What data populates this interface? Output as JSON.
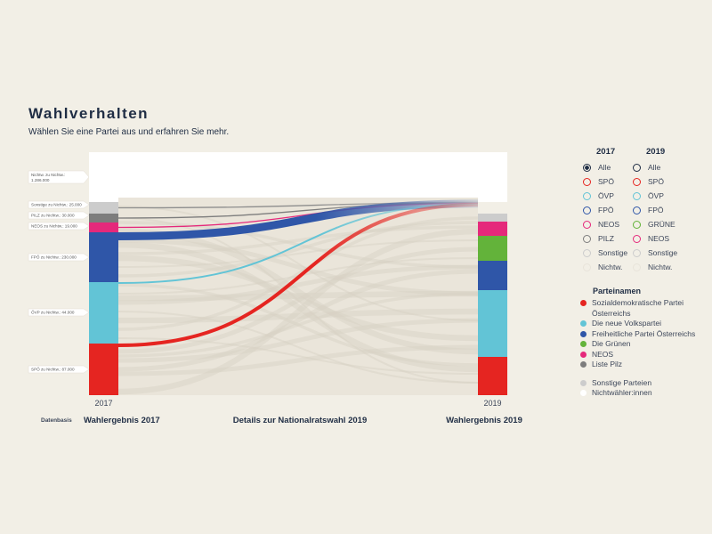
{
  "header": {
    "title": "Wahlverhalten",
    "subtitle": "Wählen Sie eine Partei aus und erfahren Sie mehr."
  },
  "chart_data": {
    "type": "sankey",
    "year_left": "2017",
    "year_right": "2019",
    "left_nodes": [
      {
        "id": "nichtw",
        "color": "#ffffff",
        "label": "Nichtw. zu Nichtw.: 1.286.000",
        "value": 1286000
      },
      {
        "id": "sonstige",
        "color": "#cccccc",
        "label": "Sonstige zu Nichtw.: 25.000",
        "value": 25000
      },
      {
        "id": "pilz",
        "color": "#7d7d7d",
        "label": "PILZ zu Nichtw.: 30.000",
        "value": 30000
      },
      {
        "id": "neos",
        "color": "#e5297b",
        "label": "NEOS zu Nichtw.: 19.000",
        "value": 19000
      },
      {
        "id": "fpo",
        "color": "#2f56a8",
        "label": "FPÖ zu Nichtw.: 230.000",
        "value": 230000
      },
      {
        "id": "ovp",
        "color": "#62c4d6",
        "label": "ÖVP zu Nichtw.: 44.000",
        "value": 44000
      },
      {
        "id": "spo",
        "color": "#e52521",
        "label": "SPÖ zu Nichtw.: 87.000",
        "value": 87000
      }
    ],
    "right_nodes": [
      {
        "id": "sonstige",
        "color": "#cccccc"
      },
      {
        "id": "neos",
        "color": "#e5297b"
      },
      {
        "id": "grune",
        "color": "#63b33a"
      },
      {
        "id": "fpo",
        "color": "#2f56a8"
      },
      {
        "id": "ovp",
        "color": "#62c4d6"
      },
      {
        "id": "spo",
        "color": "#e52521"
      }
    ],
    "highlighted_flows": [
      {
        "from": "sonstige",
        "to": "nichtw",
        "value": 25000,
        "color": "#8d8d8d"
      },
      {
        "from": "pilz",
        "to": "nichtw",
        "value": 30000,
        "color": "#7d7d7d"
      },
      {
        "from": "neos",
        "to": "nichtw",
        "value": 19000,
        "color": "#e5297b"
      },
      {
        "from": "fpo",
        "to": "nichtw",
        "value": 230000,
        "color": "#2f56a8"
      },
      {
        "from": "ovp",
        "to": "nichtw",
        "value": 44000,
        "color": "#62c4d6"
      },
      {
        "from": "spo",
        "to": "nichtw",
        "value": 87000,
        "color": "#e52521"
      }
    ],
    "bottom_labels": {
      "source": "Datenbasis",
      "left": "Wahlergebnis 2017",
      "center": "Details zur Nationalratswahl 2019",
      "right": "Wahlergebnis 2019"
    }
  },
  "legend": {
    "col2017": {
      "head": "2017",
      "items": [
        {
          "label": "Alle",
          "color": "#1f2d44",
          "selected": true
        },
        {
          "label": "SPÖ",
          "color": "#e52521"
        },
        {
          "label": "ÖVP",
          "color": "#62c4d6"
        },
        {
          "label": "FPÖ",
          "color": "#2f56a8"
        },
        {
          "label": "NEOS",
          "color": "#e5297b"
        },
        {
          "label": "PILZ",
          "color": "#7d7d7d"
        },
        {
          "label": "Sonstige",
          "color": "#cccccc"
        },
        {
          "label": "Nichtw.",
          "color": "#ffffff"
        }
      ]
    },
    "col2019": {
      "head": "2019",
      "items": [
        {
          "label": "Alle",
          "color": "#1f2d44"
        },
        {
          "label": "SPÖ",
          "color": "#e52521"
        },
        {
          "label": "ÖVP",
          "color": "#62c4d6"
        },
        {
          "label": "FPÖ",
          "color": "#2f56a8"
        },
        {
          "label": "GRÜNE",
          "color": "#63b33a"
        },
        {
          "label": "NEOS",
          "color": "#e5297b"
        },
        {
          "label": "Sonstige",
          "color": "#cccccc"
        },
        {
          "label": "Nichtw.",
          "color": "#ffffff"
        }
      ]
    }
  },
  "party_names": {
    "head": "Parteinamen",
    "items": [
      {
        "label": "Sozialdemokratische Partei Österreichs",
        "color": "#e52521"
      },
      {
        "label": "Die neue Volkspartei",
        "color": "#62c4d6"
      },
      {
        "label": "Freiheitliche Partei Österreichs",
        "color": "#2f56a8"
      },
      {
        "label": "Die Grünen",
        "color": "#63b33a"
      },
      {
        "label": "NEOS",
        "color": "#e5297b"
      },
      {
        "label": "Liste Pilz",
        "color": "#7d7d7d"
      }
    ],
    "extra": [
      {
        "label": "Sonstige Parteien",
        "color": "#cccccc"
      },
      {
        "label": "Nichtwähler:innen",
        "color": "#ffffff"
      }
    ]
  }
}
